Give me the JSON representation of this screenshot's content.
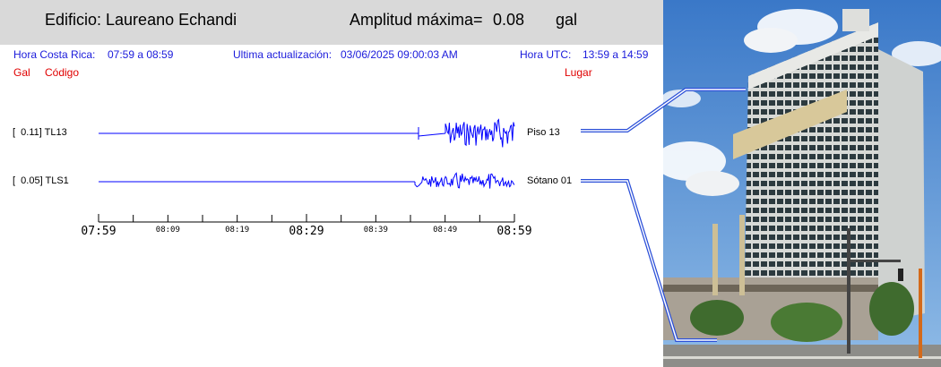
{
  "header": {
    "building": "Edificio: Laureano Echandi",
    "amplitude_label": "Amplitud máxima=",
    "amplitude_value": "0.08",
    "amplitude_unit": "gal"
  },
  "info": {
    "cr_time_label": "Hora Costa Rica:",
    "cr_time_value": "07:59 a 08:59",
    "updated_label": "Ultima actualización:",
    "updated_value": "03/06/2025 09:00:03 AM",
    "utc_label": "Hora UTC:",
    "utc_value": "13:59 a 14:59"
  },
  "columns": {
    "gal": "Gal",
    "code": "Código",
    "place": "Lugar"
  },
  "stations": [
    {
      "label": "[  0.11] TL13",
      "place": "Piso 13"
    },
    {
      "label": "[  0.05] TLS1",
      "place": "Sótano 01"
    }
  ],
  "time_axis": {
    "major": [
      "07:59",
      "08:29",
      "08:59"
    ],
    "minor": [
      "08:09",
      "08:19",
      "08:39",
      "08:49"
    ]
  },
  "colors": {
    "trace": "#0000ff",
    "info": "#1a1adb",
    "header_red": "#e00000",
    "topbar": "#d9d9d9"
  }
}
